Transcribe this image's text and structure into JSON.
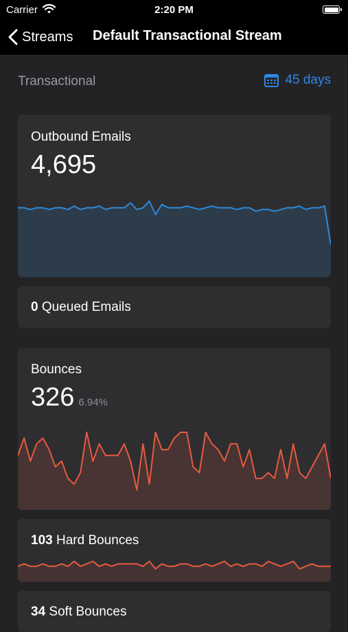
{
  "status": {
    "carrier": "Carrier",
    "time": "2:20 PM"
  },
  "nav": {
    "back_label": "Streams",
    "title": "Default Transactional Stream"
  },
  "filter": {
    "label": "Transactional",
    "range": "45 days"
  },
  "colors": {
    "accent": "#2f87e6",
    "outbound": "#2e8ad8",
    "bounce": "#e85a40"
  },
  "outbound": {
    "title": "Outbound Emails",
    "value": "4,695",
    "series": [
      100,
      100,
      99,
      100,
      100,
      99,
      100,
      100,
      99,
      101,
      99,
      100,
      100,
      101,
      99,
      100,
      100,
      100,
      103,
      99,
      100,
      104,
      96,
      102,
      100,
      100,
      100,
      101,
      100,
      99,
      100,
      101,
      100,
      100,
      100,
      99,
      100,
      100,
      98,
      99,
      99,
      98,
      99,
      100,
      100,
      101,
      99,
      100,
      100,
      101,
      78
    ]
  },
  "queued": {
    "count": "0",
    "label": "Queued Emails"
  },
  "bounces": {
    "title": "Bounces",
    "value": "326",
    "percent": "6.94%",
    "series": [
      10,
      13,
      9,
      12,
      13,
      11,
      8,
      9,
      6,
      5,
      7,
      14,
      9,
      12,
      10,
      10,
      10,
      12,
      9,
      4,
      12,
      5,
      14,
      11,
      11,
      13,
      14,
      14,
      8,
      7,
      14,
      12,
      11,
      9,
      12,
      12,
      8,
      11,
      6,
      6,
      7,
      6,
      11,
      6,
      12,
      7,
      6,
      8,
      10,
      12,
      6
    ]
  },
  "hard_bounces": {
    "count": "103",
    "label": "Hard Bounces",
    "series": [
      3,
      4,
      3,
      3,
      4,
      3,
      3,
      4,
      3,
      5,
      3,
      4,
      5,
      3,
      4,
      3,
      4,
      4,
      4,
      4,
      3,
      5,
      2,
      4,
      3,
      3,
      4,
      4,
      3,
      3,
      4,
      3,
      4,
      5,
      3,
      4,
      3,
      4,
      4,
      3,
      5,
      4,
      3,
      4,
      5,
      2,
      3,
      4,
      3,
      3,
      3
    ]
  },
  "soft_bounces": {
    "count": "34",
    "label": "Soft Bounces"
  }
}
